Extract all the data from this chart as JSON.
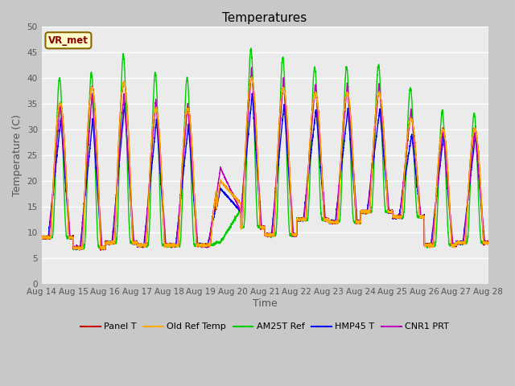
{
  "title": "Temperatures",
  "xlabel": "Time",
  "ylabel": "Temperature (C)",
  "ylim": [
    0,
    50
  ],
  "yticks": [
    0,
    5,
    10,
    15,
    20,
    25,
    30,
    35,
    40,
    45,
    50
  ],
  "x_tick_labels": [
    "Aug 14",
    "Aug 15",
    "Aug 16",
    "Aug 17",
    "Aug 18",
    "Aug 19",
    "Aug 20",
    "Aug 21",
    "Aug 22",
    "Aug 23",
    "Aug 24",
    "Aug 25",
    "Aug 26",
    "Aug 27",
    "Aug 28"
  ],
  "series_colors": {
    "Panel_T": "#cc0000",
    "OldRefTemp": "#ffaa00",
    "AM25T_Ref": "#00cc00",
    "HMP45_T": "#0000ee",
    "CNR1_PRT": "#bb00bb"
  },
  "series_labels": {
    "Panel_T": "Panel T",
    "OldRefTemp": "Old Ref Temp",
    "AM25T_Ref": "AM25T Ref",
    "HMP45_T": "HMP45 T",
    "CNR1_PRT": "CNR1 PRT"
  },
  "bg_color": "#ebebeb",
  "fig_bg_color": "#c8c8c8",
  "legend_label": "VR_met",
  "legend_box_facecolor": "#ffffcc",
  "legend_box_edgecolor": "#886600",
  "lw": 1.0,
  "day_peaks_green": [
    40,
    41,
    44.5,
    41,
    40,
    8,
    45.5,
    44,
    42,
    42,
    42.5,
    38,
    33.5,
    33
  ],
  "day_peaks_red": [
    35,
    38,
    39,
    34,
    34,
    20,
    40,
    38,
    37,
    37,
    37,
    32,
    30,
    30
  ],
  "day_peaks_blue": [
    32,
    32,
    35,
    32,
    31,
    19,
    37,
    35,
    34,
    34,
    34,
    29,
    29,
    29
  ],
  "day_peaks_purple": [
    35,
    37,
    37,
    36,
    35,
    22,
    42,
    40,
    39,
    39,
    39,
    34,
    30,
    30
  ],
  "day_mins_all": [
    9,
    7,
    8,
    7.5,
    7.5,
    7.5,
    11,
    9.5,
    12.5,
    12,
    14,
    13,
    7.5,
    8
  ]
}
